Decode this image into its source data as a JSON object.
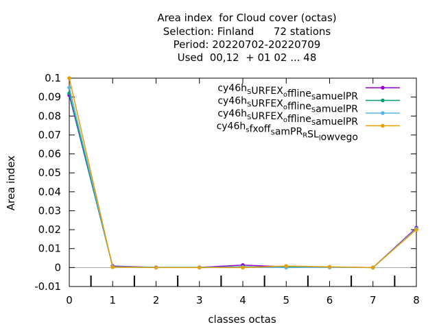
{
  "chart_data": {
    "type": "line",
    "title_lines": [
      "Area index  for Cloud cover (octas)",
      "Selection: Finland      72 stations",
      "Period: 20220702-20220709",
      "Used  00,12  + 01 02 ... 48"
    ],
    "xlabel": "classes octas",
    "ylabel": "Area index",
    "xlim": [
      0,
      8
    ],
    "ylim": [
      -0.01,
      0.1
    ],
    "xticks": [
      "0",
      "1",
      "2",
      "3",
      "4",
      "5",
      "6",
      "7",
      "8"
    ],
    "yticks": [
      "-0.01",
      "0",
      "0.01",
      "0.02",
      "0.03",
      "0.04",
      "0.05",
      "0.06",
      "0.07",
      "0.08",
      "0.09",
      "0.1"
    ],
    "legend_position": "top-right",
    "grid": false,
    "x": [
      0,
      1,
      2,
      3,
      4,
      5,
      6,
      7,
      8
    ],
    "series": [
      {
        "name_parts": [
          [
            "cy46h",
            "n"
          ],
          [
            "S",
            "sub"
          ],
          [
            "URFEX",
            "n"
          ],
          [
            "o",
            "sub"
          ],
          [
            "ffline",
            "n"
          ],
          [
            "S",
            "sub"
          ],
          [
            "amuelPR",
            "n"
          ]
        ],
        "color": "#9400d3",
        "values": [
          0.091,
          0.0008,
          0.0001,
          0.0001,
          0.0013,
          0.0004,
          0.0002,
          0.0,
          0.021
        ]
      },
      {
        "name_parts": [
          [
            "cy46h",
            "n"
          ],
          [
            "S",
            "sub"
          ],
          [
            "URFEX",
            "n"
          ],
          [
            "o",
            "sub"
          ],
          [
            "ffline",
            "n"
          ],
          [
            "S",
            "sub"
          ],
          [
            "amuelPR",
            "n"
          ]
        ],
        "color": "#009e73",
        "values": [
          0.092,
          0.0005,
          0.0001,
          0.0001,
          0.0004,
          0.0003,
          0.0002,
          0.0,
          0.0205
        ]
      },
      {
        "name_parts": [
          [
            "cy46h",
            "n"
          ],
          [
            "S",
            "sub"
          ],
          [
            "URFEX",
            "n"
          ],
          [
            "o",
            "sub"
          ],
          [
            "ffline",
            "n"
          ],
          [
            "S",
            "sub"
          ],
          [
            "amuelPR",
            "n"
          ]
        ],
        "color": "#56b4e9",
        "values": [
          0.095,
          0.0004,
          0.0001,
          0.0001,
          0.0002,
          0.0,
          0.0001,
          0.0,
          0.0205
        ]
      },
      {
        "name_parts": [
          [
            "cy46h",
            "n"
          ],
          [
            "s",
            "sub"
          ],
          [
            "fxoff",
            "n"
          ],
          [
            "S",
            "sub"
          ],
          [
            "amPR",
            "n"
          ],
          [
            "R",
            "sub"
          ],
          [
            "SL",
            "n"
          ],
          [
            "l",
            "sub"
          ],
          [
            "owvego",
            "n"
          ]
        ],
        "color": "#e69f00",
        "values": [
          0.1,
          0.0002,
          0.0,
          0.0,
          0.0,
          0.0008,
          0.0004,
          0.0,
          0.02
        ]
      }
    ]
  }
}
